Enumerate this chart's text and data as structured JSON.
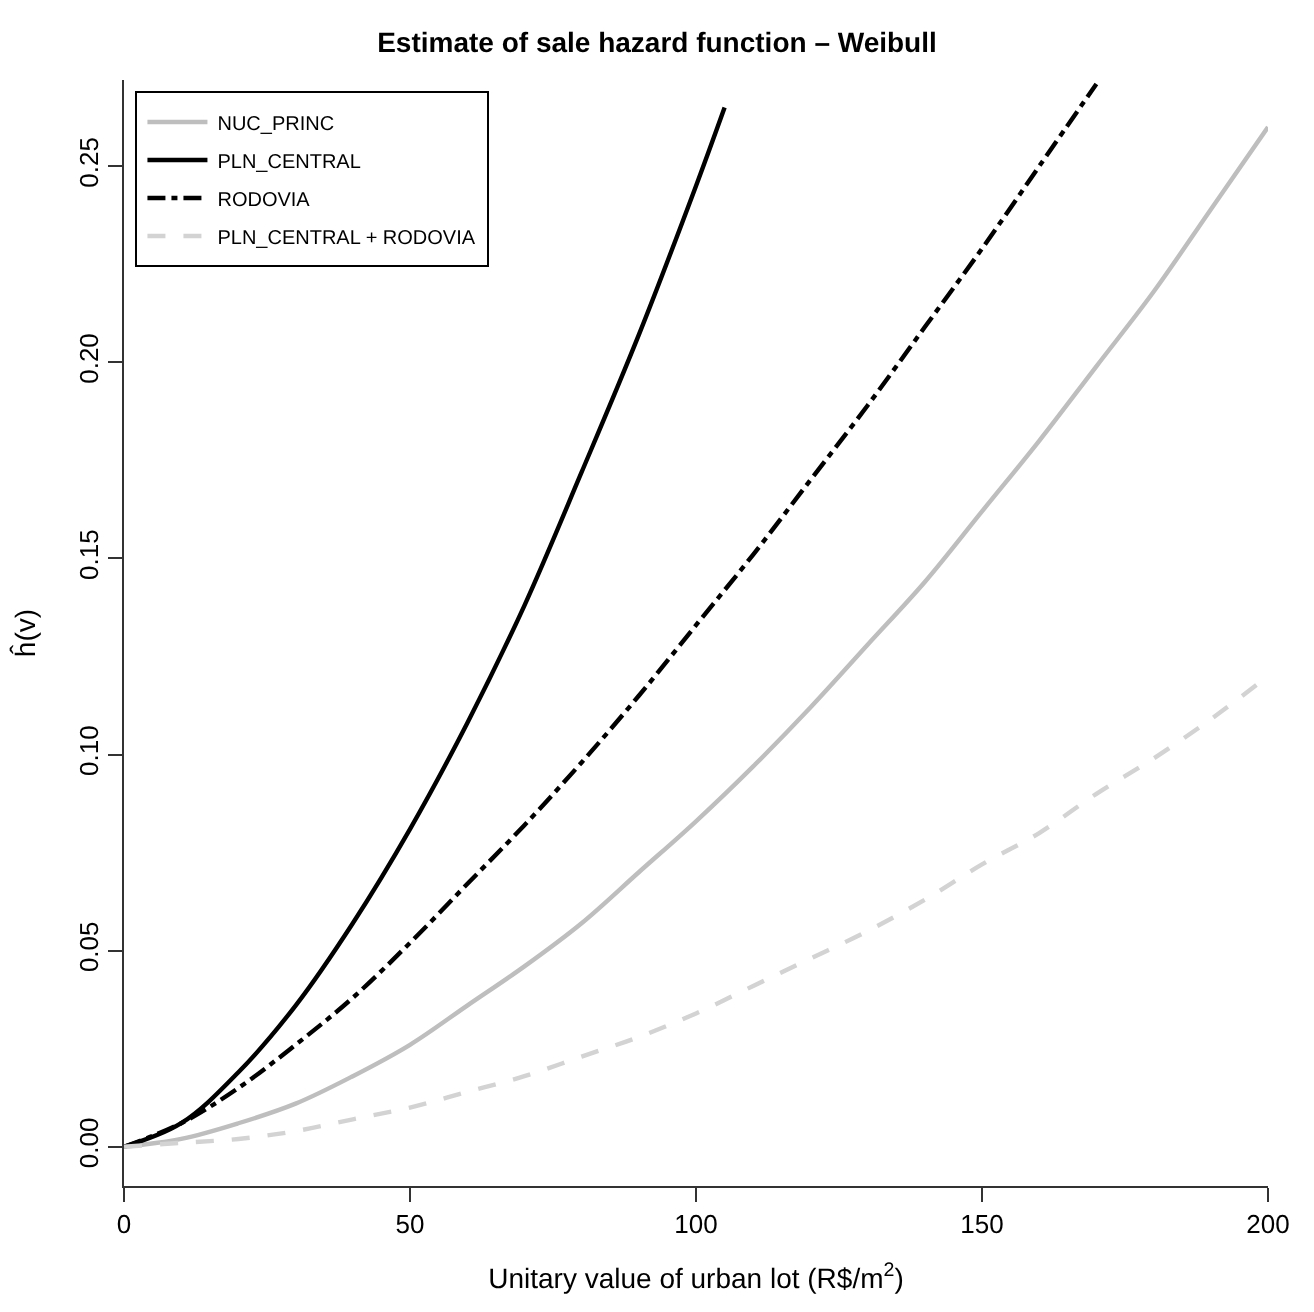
{
  "chart_data": {
    "type": "line",
    "title": "Estimate of sale hazard function – Weibull",
    "xlabel": "Unitary value of urban lot (R$/m$^{2}$)",
    "ylabel": "ĥ(v)",
    "xlim": [
      0,
      200
    ],
    "xticks": [
      0,
      50,
      100,
      150,
      200
    ],
    "ylim": [
      -0.01,
      0.272
    ],
    "yticks": [
      {
        "value": 0,
        "label": "0.00"
      },
      {
        "value": 0.05,
        "label": "0.05"
      },
      {
        "value": 0.1,
        "label": "0.10"
      },
      {
        "value": 0.15,
        "label": "0.15"
      },
      {
        "value": 0.2,
        "label": "0.20"
      },
      {
        "value": 0.25,
        "label": "0.25"
      }
    ],
    "legend": "top left",
    "marker": "none",
    "series": [
      {
        "name": "NUC_PRINC",
        "color": "#bebebe",
        "line_style": "solid",
        "x": [
          0,
          10,
          20,
          30,
          40,
          50,
          60,
          70,
          80,
          90,
          100,
          110,
          120,
          130,
          140,
          150,
          160,
          170,
          180,
          190,
          200
        ],
        "values": [
          0,
          0.002,
          0.006,
          0.011,
          0.018,
          0.026,
          0.036,
          0.046,
          0.057,
          0.07,
          0.083,
          0.097,
          0.112,
          0.128,
          0.144,
          0.162,
          0.18,
          0.199,
          0.218,
          0.239,
          0.26
        ]
      },
      {
        "name": "PLN_CENTRAL",
        "color": "#000000",
        "line_style": "solid",
        "x": [
          0,
          10,
          20,
          30,
          40,
          50,
          60,
          70,
          80,
          90,
          100,
          105
        ],
        "values": [
          0,
          0.006,
          0.019,
          0.036,
          0.057,
          0.081,
          0.108,
          0.138,
          0.172,
          0.207,
          0.245,
          0.265
        ]
      },
      {
        "name": "RODOVIA",
        "color": "#000000",
        "line_style": "dashdot",
        "x": [
          0,
          10,
          20,
          30,
          40,
          50,
          60,
          70,
          80,
          90,
          100,
          110,
          120,
          130,
          140,
          150,
          160,
          170
        ],
        "values": [
          0,
          0.006,
          0.015,
          0.026,
          0.038,
          0.052,
          0.067,
          0.082,
          0.098,
          0.115,
          0.133,
          0.151,
          0.17,
          0.189,
          0.209,
          0.229,
          0.25,
          0.271
        ]
      },
      {
        "name": "PLN_CENTRAL + RODOVIA",
        "color": "#d3d3d3",
        "line_style": "dashed",
        "x": [
          0,
          10,
          20,
          30,
          40,
          50,
          60,
          70,
          80,
          90,
          100,
          110,
          120,
          130,
          140,
          150,
          160,
          170,
          180,
          190,
          200
        ],
        "values": [
          0,
          0.001,
          0.002,
          0.004,
          0.007,
          0.01,
          0.014,
          0.018,
          0.023,
          0.028,
          0.034,
          0.041,
          0.048,
          0.055,
          0.063,
          0.072,
          0.08,
          0.09,
          0.099,
          0.109,
          0.12
        ]
      }
    ]
  }
}
